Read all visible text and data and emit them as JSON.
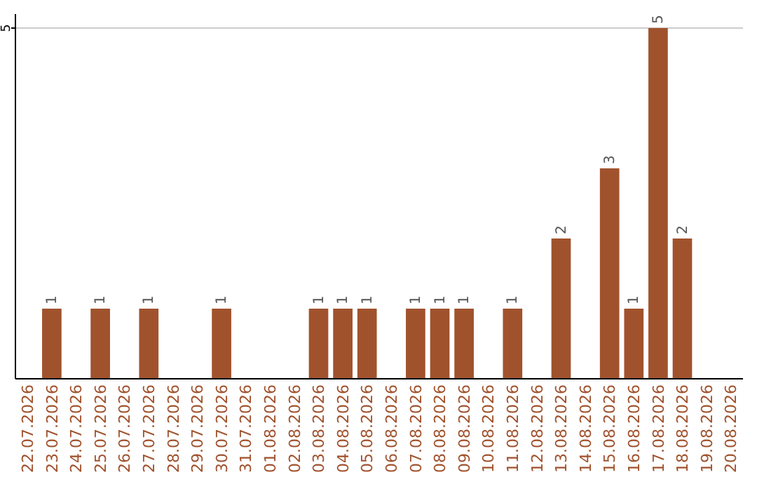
{
  "chart_data": {
    "type": "bar",
    "categories": [
      "22.07.2026",
      "23.07.2026",
      "24.07.2026",
      "25.07.2026",
      "26.07.2026",
      "27.07.2026",
      "28.07.2026",
      "29.07.2026",
      "30.07.2026",
      "31.07.2026",
      "01.08.2026",
      "02.08.2026",
      "03.08.2026",
      "04.08.2026",
      "05.08.2026",
      "06.08.2026",
      "07.08.2026",
      "08.08.2026",
      "09.08.2026",
      "10.08.2026",
      "11.08.2026",
      "12.08.2026",
      "13.08.2026",
      "14.08.2026",
      "15.08.2026",
      "16.08.2026",
      "17.08.2026",
      "18.08.2026",
      "19.08.2026",
      "20.08.2026"
    ],
    "values": [
      0,
      1,
      0,
      1,
      0,
      1,
      0,
      0,
      1,
      0,
      0,
      0,
      1,
      1,
      1,
      0,
      1,
      1,
      1,
      0,
      1,
      0,
      2,
      0,
      3,
      1,
      5,
      2,
      0,
      0
    ],
    "value_labels": [
      null,
      "1",
      null,
      "1",
      null,
      "1",
      null,
      null,
      "1",
      null,
      null,
      null,
      "1",
      "1",
      "1",
      null,
      "1",
      "1",
      "1",
      null,
      "1",
      null,
      "2",
      null,
      "3",
      "1",
      "5",
      "2",
      null,
      null
    ],
    "color": "#a0522d",
    "ylim": [
      0,
      5.2
    ],
    "yticks": [
      5
    ],
    "grid": "y"
  }
}
